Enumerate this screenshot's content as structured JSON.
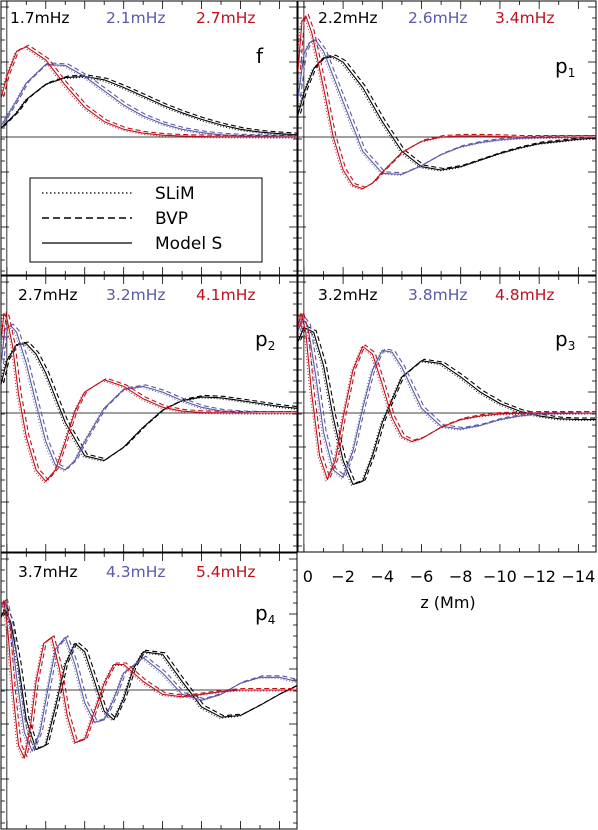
{
  "colors": {
    "black": "#000000",
    "blue": "#5a5aa8",
    "red": "#c0101c"
  },
  "legend": {
    "labels": [
      "SLiM",
      "BVP",
      "Model S"
    ],
    "styles": [
      "dotted",
      "dashed",
      "solid"
    ]
  },
  "x_axis": {
    "label": "z (Mm)",
    "tick_labels": [
      "0",
      "−2",
      "−4",
      "−6",
      "−8",
      "−10",
      "−12",
      "−14"
    ],
    "tick_values": [
      0,
      -2,
      -4,
      -6,
      -8,
      -10,
      -12,
      -14
    ],
    "xlim": [
      0.3,
      -14.9
    ]
  },
  "chart_data": [
    {
      "type": "line",
      "mode": "f",
      "mode_label": "f",
      "mode_sub": "",
      "frequencies": [
        "1.7mHz",
        "2.1mHz",
        "2.7mHz"
      ],
      "series": [
        {
          "color": "black",
          "x": [
            0.3,
            -0.5,
            -1,
            -2,
            -3,
            -4,
            -5,
            -6,
            -7,
            -8,
            -9,
            -10,
            -11,
            -12,
            -13,
            -14,
            -14.9
          ],
          "y": [
            0.08,
            0.22,
            0.34,
            0.48,
            0.54,
            0.55,
            0.52,
            0.45,
            0.37,
            0.29,
            0.22,
            0.16,
            0.11,
            0.07,
            0.045,
            0.03,
            0.02
          ]
        },
        {
          "color": "blue",
          "x": [
            0.3,
            -0.5,
            -1,
            -2,
            -3,
            -4,
            -5,
            -6,
            -7,
            -8,
            -9,
            -10,
            -11,
            -12,
            -13,
            -14,
            -14.9
          ],
          "y": [
            0.1,
            0.33,
            0.49,
            0.66,
            0.65,
            0.55,
            0.42,
            0.29,
            0.19,
            0.12,
            0.07,
            0.04,
            0.02,
            0.01,
            0.006,
            0.003,
            0.002
          ]
        },
        {
          "color": "red",
          "x": [
            0.3,
            0,
            -0.5,
            -1,
            -2,
            -3,
            -4,
            -5,
            -6,
            -7,
            -8,
            -9,
            -10,
            -11,
            -12,
            -13,
            -14,
            -14.9
          ],
          "y": [
            0.35,
            0.55,
            0.78,
            0.82,
            0.7,
            0.47,
            0.27,
            0.14,
            0.07,
            0.035,
            0.016,
            0.008,
            0.004,
            0.002,
            0.001,
            0.0,
            0.0,
            0.0
          ]
        }
      ]
    },
    {
      "type": "line",
      "mode": "p1",
      "mode_label": "p",
      "mode_sub": "1",
      "frequencies": [
        "2.2mHz",
        "2.6mHz",
        "3.4mHz"
      ],
      "series": [
        {
          "color": "black",
          "x": [
            0.3,
            0,
            -0.5,
            -1,
            -1.5,
            -2,
            -3,
            -4,
            -5,
            -6,
            -7,
            -8,
            -9,
            -10,
            -11,
            -12,
            -13,
            -14,
            -14.9
          ],
          "y": [
            0.2,
            0.4,
            0.62,
            0.72,
            0.73,
            0.68,
            0.45,
            0.14,
            -0.13,
            -0.27,
            -0.3,
            -0.27,
            -0.21,
            -0.15,
            -0.1,
            -0.06,
            -0.04,
            -0.02,
            -0.01
          ]
        },
        {
          "color": "blue",
          "x": [
            0.3,
            0,
            -0.3,
            -0.6,
            -1,
            -2,
            -3,
            -4,
            -5,
            -6,
            -7,
            -8,
            -9,
            -10,
            -11,
            -12,
            -13,
            -14.9
          ],
          "y": [
            0.35,
            0.75,
            0.86,
            0.88,
            0.78,
            0.32,
            -0.13,
            -0.33,
            -0.34,
            -0.26,
            -0.16,
            -0.09,
            -0.05,
            -0.025,
            -0.012,
            -0.006,
            -0.003,
            0.0
          ]
        },
        {
          "color": "red",
          "x": [
            0.3,
            0.1,
            -0.1,
            -0.4,
            -1,
            -1.5,
            -2,
            -2.5,
            -3,
            -3.5,
            -4,
            -5,
            -6,
            -7,
            -8,
            -9,
            -10,
            -11,
            -12,
            -14.9
          ],
          "y": [
            0.6,
            1.05,
            1.1,
            0.95,
            0.45,
            0.0,
            -0.3,
            -0.44,
            -0.47,
            -0.42,
            -0.32,
            -0.14,
            -0.04,
            0.0,
            0.01,
            0.01,
            0.005,
            0.0,
            0.0,
            0.0
          ]
        }
      ]
    },
    {
      "type": "line",
      "mode": "p2",
      "mode_label": "p",
      "mode_sub": "2",
      "frequencies": [
        "2.7mHz",
        "3.2mHz",
        "4.1mHz"
      ],
      "series": [
        {
          "color": "black",
          "x": [
            0.3,
            0,
            -0.5,
            -1,
            -1.5,
            -2,
            -3,
            -4,
            -5,
            -6,
            -7,
            -8,
            -9,
            -10,
            -11,
            -12,
            -13,
            -14,
            -14.9
          ],
          "y": [
            0.3,
            0.55,
            0.72,
            0.73,
            0.62,
            0.42,
            -0.1,
            -0.45,
            -0.5,
            -0.36,
            -0.15,
            0.03,
            0.13,
            0.17,
            0.16,
            0.13,
            0.1,
            0.07,
            0.05
          ]
        },
        {
          "color": "blue",
          "x": [
            0.3,
            0.1,
            -0.2,
            -0.5,
            -1,
            -1.5,
            -2,
            -2.5,
            -3,
            -3.5,
            -4,
            -5,
            -6,
            -7,
            -8,
            -9,
            -10,
            -11,
            -12,
            -13,
            -14.9
          ],
          "y": [
            0.5,
            0.88,
            0.92,
            0.85,
            0.52,
            0.1,
            -0.3,
            -0.55,
            -0.6,
            -0.5,
            -0.3,
            0.05,
            0.25,
            0.28,
            0.22,
            0.13,
            0.06,
            0.02,
            0.005,
            0.0,
            0.0
          ]
        },
        {
          "color": "red",
          "x": [
            0.3,
            0.15,
            0.0,
            -0.3,
            -0.6,
            -1,
            -1.5,
            -2,
            -2.5,
            -3,
            -3.5,
            -4,
            -5,
            -6,
            -7,
            -8,
            -9,
            -10,
            -12,
            -14.9
          ],
          "y": [
            0.75,
            1.05,
            1.0,
            0.7,
            0.2,
            -0.25,
            -0.6,
            -0.72,
            -0.6,
            -0.3,
            0.02,
            0.22,
            0.35,
            0.28,
            0.15,
            0.06,
            0.02,
            0.005,
            0.0,
            0.0
          ]
        }
      ]
    },
    {
      "type": "line",
      "mode": "p3",
      "mode_label": "p",
      "mode_sub": "3",
      "frequencies": [
        "3.2mHz",
        "3.8mHz",
        "4.8mHz"
      ],
      "series": [
        {
          "color": "black",
          "x": [
            0.3,
            0.0,
            -0.5,
            -1,
            -1.5,
            -2,
            -2.5,
            -3,
            -3.5,
            -4,
            -5,
            -6,
            -7,
            -8,
            -9,
            -10,
            -11,
            -12,
            -13,
            -14,
            -14.9
          ],
          "y": [
            0.75,
            0.9,
            0.85,
            0.5,
            -0.05,
            -0.5,
            -0.75,
            -0.72,
            -0.45,
            -0.1,
            0.38,
            0.55,
            0.52,
            0.38,
            0.22,
            0.1,
            0.02,
            -0.03,
            -0.06,
            -0.07,
            -0.07
          ]
        },
        {
          "color": "blue",
          "x": [
            0.3,
            0.1,
            -0.2,
            -0.6,
            -1,
            -1.5,
            -2,
            -2.5,
            -3,
            -3.5,
            -4,
            -4.5,
            -5,
            -6,
            -7,
            -8,
            -9,
            -10,
            -11,
            -12,
            -14.9
          ],
          "y": [
            0.85,
            1.0,
            0.92,
            0.4,
            -0.2,
            -0.6,
            -0.68,
            -0.4,
            0.05,
            0.45,
            0.66,
            0.64,
            0.48,
            0.05,
            -0.14,
            -0.17,
            -0.13,
            -0.07,
            -0.03,
            -0.01,
            0.0
          ]
        },
        {
          "color": "red",
          "x": [
            0.3,
            0.15,
            -0.1,
            -0.4,
            -0.8,
            -1.2,
            -1.6,
            -2,
            -2.5,
            -3,
            -3.5,
            -4,
            -4.5,
            -5,
            -5.5,
            -6,
            -7,
            -8,
            -9,
            -10,
            -12,
            -14.9
          ],
          "y": [
            0.9,
            1.05,
            0.85,
            0.2,
            -0.45,
            -0.7,
            -0.5,
            -0.05,
            0.45,
            0.7,
            0.62,
            0.3,
            -0.05,
            -0.25,
            -0.3,
            -0.27,
            -0.15,
            -0.07,
            -0.03,
            -0.01,
            0.0,
            0.0
          ]
        }
      ]
    },
    {
      "type": "line",
      "mode": "p4",
      "mode_label": "p",
      "mode_sub": "4",
      "frequencies": [
        "3.7mHz",
        "4.3mHz",
        "5.4mHz"
      ],
      "series": [
        {
          "color": "black",
          "x": [
            0.3,
            0.1,
            -0.2,
            -0.6,
            -1,
            -1.5,
            -2,
            -2.5,
            -3,
            -3.5,
            -4,
            -4.5,
            -5,
            -5.5,
            -6,
            -6.5,
            -7,
            -8,
            -9,
            -10,
            -11,
            -12,
            -13,
            -14,
            -14.9
          ],
          "y": [
            0.85,
            0.95,
            0.8,
            0.3,
            -0.35,
            -0.7,
            -0.65,
            -0.2,
            0.3,
            0.55,
            0.45,
            0.1,
            -0.25,
            -0.35,
            -0.1,
            0.25,
            0.45,
            0.42,
            0.1,
            -0.2,
            -0.32,
            -0.3,
            -0.18,
            -0.05,
            0.05
          ]
        },
        {
          "color": "blue",
          "x": [
            0.3,
            0.1,
            -0.2,
            -0.5,
            -0.9,
            -1.3,
            -1.7,
            -2.1,
            -2.5,
            -3,
            -3.5,
            -4,
            -4.5,
            -5,
            -5.5,
            -6,
            -7,
            -8,
            -9,
            -10,
            -11,
            -12,
            -13,
            -14,
            -14.9
          ],
          "y": [
            0.95,
            1.05,
            0.75,
            0.15,
            -0.5,
            -0.72,
            -0.5,
            0.0,
            0.48,
            0.62,
            0.3,
            -0.15,
            -0.38,
            -0.35,
            -0.1,
            0.2,
            0.38,
            0.2,
            -0.05,
            -0.12,
            -0.05,
            0.08,
            0.15,
            0.15,
            0.1
          ]
        },
        {
          "color": "red",
          "x": [
            0.3,
            0.15,
            -0.05,
            -0.3,
            -0.6,
            -0.9,
            -1.2,
            -1.5,
            -1.9,
            -2.3,
            -2.7,
            -3.1,
            -3.5,
            -4,
            -4.5,
            -5,
            -5.5,
            -6,
            -7,
            -8,
            -9,
            -10,
            -11,
            -12,
            -13,
            -14,
            -14.9
          ],
          "y": [
            1.0,
            1.05,
            0.7,
            0.0,
            -0.65,
            -0.8,
            -0.45,
            0.1,
            0.55,
            0.62,
            0.25,
            -0.3,
            -0.62,
            -0.58,
            -0.25,
            0.08,
            0.3,
            0.3,
            0.1,
            -0.05,
            -0.08,
            -0.05,
            -0.02,
            0.0,
            0.0,
            0.0,
            0.0
          ]
        }
      ]
    }
  ]
}
